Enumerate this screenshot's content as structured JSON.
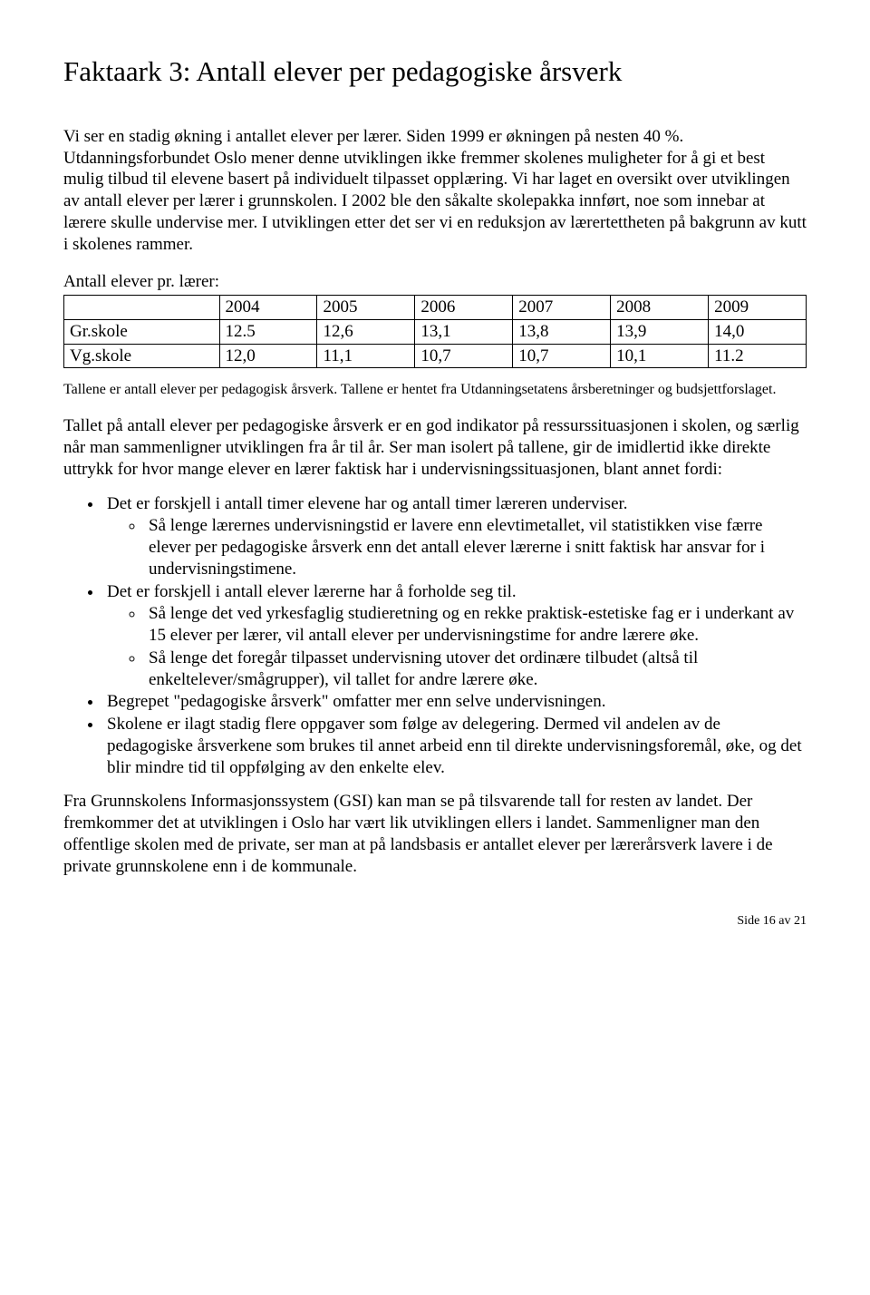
{
  "title": "Faktaark 3: Antall elever per pedagogiske årsverk",
  "intro": "Vi ser en stadig økning i antallet elever per lærer. Siden 1999 er økningen på nesten 40 %. Utdanningsforbundet Oslo mener denne utviklingen ikke fremmer skolenes muligheter for å gi et best mulig tilbud til elevene basert på individuelt tilpasset opplæring. Vi har laget en oversikt over utviklingen av antall elever per lærer i grunnskolen. I 2002 ble den såkalte skolepakka innført, noe som innebar at lærere skulle undervise mer. I utviklingen etter det ser vi en reduksjon av lærertettheten på bakgrunn av kutt i skolenes rammer.",
  "table_label": "Antall elever pr. lærer:",
  "table": {
    "years": [
      "2004",
      "2005",
      "2006",
      "2007",
      "2008",
      "2009"
    ],
    "rows": [
      {
        "label": "Gr.skole",
        "cells": [
          "12.5",
          "12,6",
          "13,1",
          "13,8",
          "13,9",
          "14,0"
        ]
      },
      {
        "label": "Vg.skole",
        "cells": [
          "12,0",
          "11,1",
          "10,7",
          "10,7",
          "10,1",
          "11.2"
        ]
      }
    ]
  },
  "table_note": "Tallene er antall elever per pedagogisk årsverk. Tallene er hentet fra Utdanningsetatens årsberetninger og budsjettforslaget.",
  "para2": "Tallet på antall elever per pedagogiske årsverk er en god indikator på ressurssituasjonen i skolen, og særlig når man sammenligner utviklingen fra år til år. Ser man isolert på tallene, gir de imidlertid ikke direkte uttrykk for hvor mange elever en lærer faktisk har i undervisningssituasjonen, blant annet fordi:",
  "bullets": [
    {
      "text": "Det er forskjell i antall timer elevene har og antall timer læreren underviser.",
      "sub": [
        "Så lenge lærernes undervisningstid er lavere enn elevtimetallet, vil statistikken vise færre elever per pedagogiske årsverk enn det antall elever lærerne i snitt faktisk har ansvar for i undervisningstimene."
      ]
    },
    {
      "text": "Det er forskjell i antall elever lærerne har å forholde seg til.",
      "sub": [
        "Så lenge det ved yrkesfaglig studieretning og en rekke praktisk-estetiske fag er i underkant av 15 elever per lærer, vil antall elever per undervisningstime for andre lærere øke.",
        "Så lenge det foregår tilpasset undervisning utover det ordinære tilbudet (altså til enkeltelever/smågrupper), vil tallet for andre lærere øke."
      ]
    },
    {
      "text": "Begrepet \"pedagogiske årsverk\" omfatter mer enn selve undervisningen.",
      "sub": []
    },
    {
      "text": "Skolene er ilagt stadig flere oppgaver som følge av delegering. Dermed vil andelen av de pedagogiske årsverkene som brukes til annet arbeid enn til direkte undervisningsforemål, øke, og det blir mindre tid til oppfølging av den enkelte elev.",
      "sub": []
    }
  ],
  "para3": "Fra Grunnskolens Informasjonssystem (GSI) kan man se på tilsvarende tall for resten av landet. Der fremkommer det at utviklingen i Oslo har vært lik utviklingen ellers i landet. Sammenligner man den offentlige skolen med de private, ser man at på landsbasis er antallet elever per lærerårsverk lavere i de private grunnskolene enn i de kommunale.",
  "footer": "Side 16 av 21"
}
